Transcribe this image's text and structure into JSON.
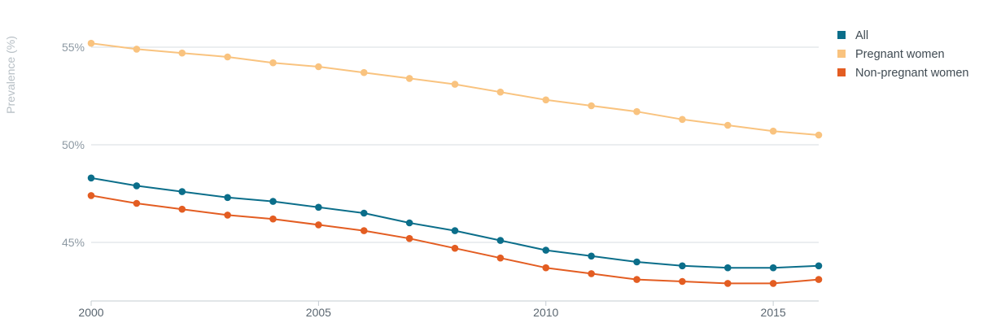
{
  "chart_data": {
    "type": "line",
    "title": "",
    "xlabel": "",
    "ylabel": "Prevalence (%)",
    "x": [
      2000,
      2001,
      2002,
      2003,
      2004,
      2005,
      2006,
      2007,
      2008,
      2009,
      2010,
      2011,
      2012,
      2013,
      2014,
      2015,
      2016
    ],
    "xlim": [
      2000,
      2016
    ],
    "ylim": [
      43,
      56.5
    ],
    "x_ticks": [
      2000,
      2005,
      2010,
      2015
    ],
    "x_tick_labels": [
      "2000",
      "2005",
      "2010",
      "2015"
    ],
    "y_ticks": [
      45,
      50,
      55
    ],
    "y_tick_labels": [
      "45%",
      "50%",
      "55%"
    ],
    "grid": true,
    "legend_position": "top-right",
    "series": [
      {
        "name": "All",
        "color": "#0b6e8a",
        "marker": "square",
        "values": [
          48.3,
          47.9,
          47.6,
          47.3,
          47.1,
          46.8,
          46.5,
          46.0,
          45.6,
          45.1,
          44.6,
          44.3,
          44.0,
          43.8,
          43.7,
          43.7,
          43.8
        ]
      },
      {
        "name": "Pregnant women",
        "color": "#f9c37f",
        "marker": "square",
        "values": [
          55.2,
          54.9,
          54.7,
          54.5,
          54.2,
          54.0,
          53.7,
          53.4,
          53.1,
          52.7,
          52.3,
          52.0,
          51.7,
          51.3,
          51.0,
          50.7,
          50.5
        ]
      },
      {
        "name": "Non-pregnant women",
        "color": "#e35d22",
        "marker": "square",
        "values": [
          47.4,
          47.0,
          46.7,
          46.4,
          46.2,
          45.9,
          45.6,
          45.2,
          44.7,
          44.2,
          43.7,
          43.4,
          43.1,
          43.0,
          42.9,
          42.9,
          43.1
        ]
      }
    ]
  }
}
